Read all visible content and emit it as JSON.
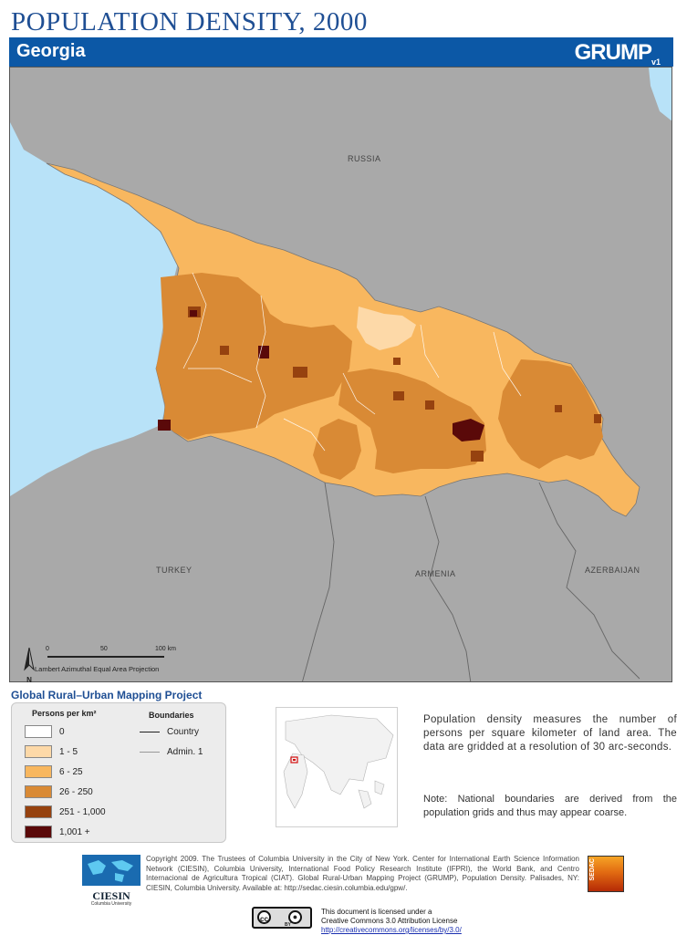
{
  "title": "POPULATION DENSITY, 2000",
  "header": {
    "country": "Georgia",
    "logo": "GRUMP",
    "logo_version": "v1"
  },
  "map": {
    "neighbors": {
      "russia": "RUSSIA",
      "turkey": "TURKEY",
      "armenia": "ARMENIA",
      "azerbaijan": "AZERBAIJAN"
    },
    "scale": {
      "ticks": [
        "0",
        "50",
        "100 km"
      ],
      "projection": "Lambert Azimuthal Equal Area Projection"
    },
    "north_label": "N"
  },
  "project_name": "Global Rural–Urban Mapping Project",
  "legend": {
    "title": "Persons per km²",
    "classes": [
      {
        "label": "0",
        "color": "#ffffff"
      },
      {
        "label": "1 - 5",
        "color": "#fdd9a8"
      },
      {
        "label": "6 - 25",
        "color": "#f8b75f"
      },
      {
        "label": "26 - 250",
        "color": "#d98a35"
      },
      {
        "label": "251 - 1,000",
        "color": "#96420f"
      },
      {
        "label": "1,001 +",
        "color": "#5a0909"
      }
    ],
    "boundaries_title": "Boundaries",
    "boundaries": [
      "Country",
      "Admin. 1"
    ]
  },
  "description": "Population density measures the number of persons per square kilometer of land area. The data are gridded at a resolution of 30 arc-seconds.",
  "note": "Note: National boundaries are derived from the population grids and thus may appear coarse.",
  "copyright": "Copyright 2009. The Trustees of Columbia University in the City of New York. Center for International Earth Science Information Network (CIESIN), Columbia University, International Food Policy Research Institute (IFPRI), the World Bank, and Centro Internacional de Agricultura Tropical (CIAT). Global Rural-Urban Mapping Project (GRUMP), Population Density. Palisades, NY: CIESIN, Columbia University. Available at: http://sedac.ciesin.columbia.edu/gpw/.",
  "ciesin": {
    "name": "CIESIN",
    "sub": "Columbia University"
  },
  "sedac": "SEDAC",
  "license": {
    "line1": "This document is licensed under a",
    "line2": "Creative Commons 3.0 Attribution License",
    "url": "http://creativecommons.org/licenses/by/3.0/",
    "cc": "cc",
    "by": "BY"
  },
  "colors": {
    "sea": "#b8e2f8",
    "land": "#a9a9a9",
    "brand": "#0c58a6",
    "title": "#1f4f94"
  }
}
